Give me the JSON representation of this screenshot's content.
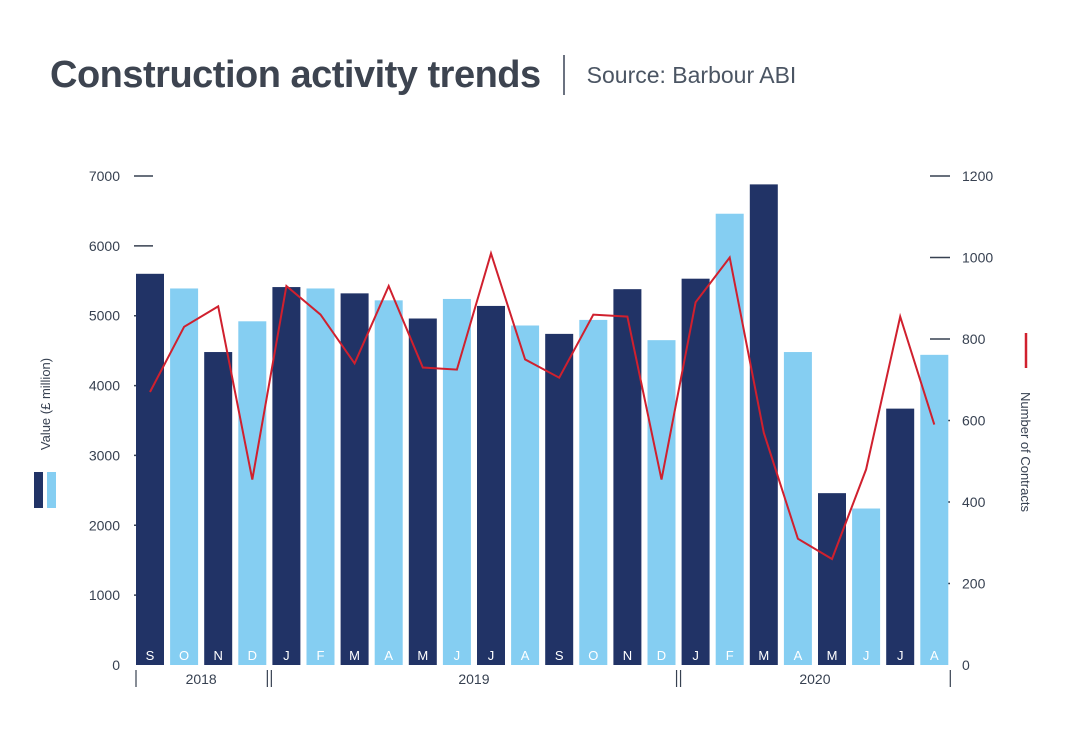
{
  "header": {
    "title": "Construction activity trends",
    "source": "Source: Barbour ABI"
  },
  "colors": {
    "dark_bar": "#213366",
    "light_bar": "#85cef2",
    "line": "#d0202e",
    "axis": "#374151"
  },
  "chart_data": {
    "type": "bar",
    "categories": [
      "S",
      "O",
      "N",
      "D",
      "J",
      "F",
      "M",
      "A",
      "M",
      "J",
      "J",
      "A",
      "S",
      "O",
      "N",
      "D",
      "J",
      "F",
      "M",
      "A",
      "M",
      "J",
      "J",
      "A"
    ],
    "shades": [
      "dark",
      "light",
      "dark",
      "light",
      "dark",
      "light",
      "dark",
      "light",
      "dark",
      "light",
      "dark",
      "light",
      "dark",
      "light",
      "dark",
      "light",
      "dark",
      "light",
      "dark",
      "light",
      "dark",
      "light",
      "dark",
      "light"
    ],
    "years": [
      {
        "label": "2018",
        "from": 0,
        "to": 3
      },
      {
        "label": "2019",
        "from": 4,
        "to": 15
      },
      {
        "label": "2020",
        "from": 16,
        "to": 23
      }
    ],
    "series": [
      {
        "name": "Value (£ million)",
        "type": "bar",
        "axis": "left",
        "values": [
          5600,
          5390,
          4480,
          4920,
          5410,
          5390,
          5320,
          5220,
          4960,
          5240,
          5140,
          4860,
          4740,
          4940,
          5380,
          4650,
          5530,
          6460,
          6880,
          4480,
          2460,
          2240,
          3670,
          4440
        ]
      },
      {
        "name": "Number of Contracts",
        "type": "line",
        "axis": "right",
        "values": [
          670,
          830,
          880,
          455,
          930,
          860,
          740,
          930,
          730,
          725,
          1010,
          750,
          705,
          860,
          855,
          455,
          890,
          1000,
          570,
          310,
          260,
          480,
          855,
          590
        ]
      }
    ],
    "y_left": {
      "label": "Value (£ million)",
      "ticks": [
        "0",
        "1000",
        "2000",
        "3000",
        "4000",
        "5000",
        "6000",
        "7000"
      ],
      "range": [
        0,
        7000
      ]
    },
    "y_right": {
      "label": "Number of Contracts",
      "ticks": [
        "0",
        "200",
        "400",
        "600",
        "800",
        "1000",
        "1200"
      ],
      "range": [
        0,
        1200
      ]
    },
    "grid": false
  }
}
